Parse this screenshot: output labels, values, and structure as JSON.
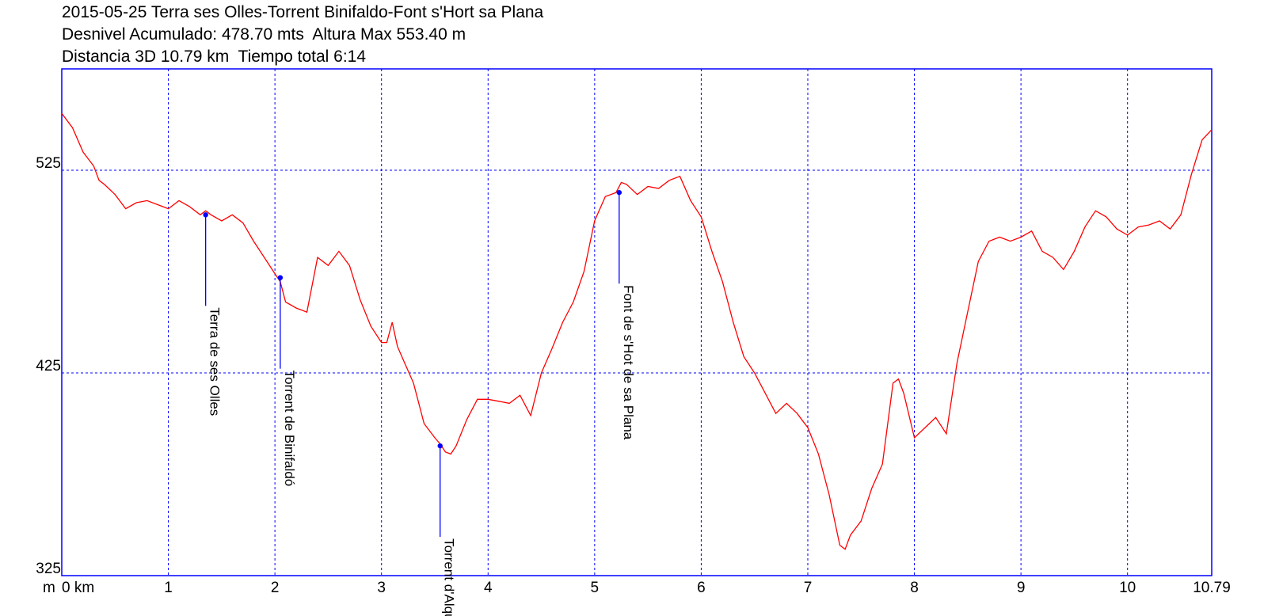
{
  "title": {
    "line1": "2015-05-25 Terra ses Olles-Torrent Binifaldo-Font s'Hort sa Plana",
    "line2": "Desnivel Acumulado: 478.70 mts  Altura Max 553.40 m",
    "line3": "Distancia 3D 10.79 km  Tiempo total 6:14"
  },
  "chart_data": {
    "type": "line",
    "xlabel": "km",
    "ylabel": "m",
    "xlim": [
      0,
      10.79
    ],
    "ylim": [
      325,
      575
    ],
    "x_ticks": [
      "0",
      "1",
      "2",
      "3",
      "4",
      "5",
      "6",
      "7",
      "8",
      "9",
      "10",
      "10.79"
    ],
    "x_tick_values": [
      0,
      1,
      2,
      3,
      4,
      5,
      6,
      7,
      8,
      9,
      10,
      10.79
    ],
    "y_ticks": [
      525,
      425,
      325
    ],
    "grid": true,
    "colors": {
      "line": "#ff0000",
      "grid": "#0000ff",
      "frame": "#0000ff",
      "marker": "#0000ff"
    },
    "series": [
      {
        "x": [
          0.0,
          0.1,
          0.2,
          0.3,
          0.35,
          0.4,
          0.5,
          0.6,
          0.7,
          0.8,
          0.9,
          1.0,
          1.1,
          1.2,
          1.3,
          1.35,
          1.4,
          1.5,
          1.6,
          1.7,
          1.8,
          1.9,
          2.0,
          2.05,
          2.1,
          2.2,
          2.3,
          2.4,
          2.5,
          2.6,
          2.7,
          2.8,
          2.9,
          3.0,
          3.05,
          3.1,
          3.15,
          3.2,
          3.3,
          3.4,
          3.5,
          3.55,
          3.6,
          3.65,
          3.7,
          3.8,
          3.9,
          4.0,
          4.1,
          4.2,
          4.3,
          4.4,
          4.5,
          4.6,
          4.7,
          4.8,
          4.9,
          5.0,
          5.1,
          5.2,
          5.25,
          5.3,
          5.4,
          5.5,
          5.6,
          5.7,
          5.8,
          5.9,
          6.0,
          6.1,
          6.2,
          6.3,
          6.4,
          6.5,
          6.6,
          6.7,
          6.8,
          6.9,
          7.0,
          7.1,
          7.2,
          7.3,
          7.35,
          7.4,
          7.5,
          7.6,
          7.7,
          7.8,
          7.85,
          7.9,
          8.0,
          8.1,
          8.2,
          8.3,
          8.4,
          8.5,
          8.6,
          8.7,
          8.8,
          8.9,
          9.0,
          9.1,
          9.2,
          9.3,
          9.4,
          9.5,
          9.6,
          9.7,
          9.8,
          9.9,
          10.0,
          10.1,
          10.2,
          10.3,
          10.4,
          10.5,
          10.6,
          10.7,
          10.79
        ],
        "values": [
          553,
          546,
          534,
          527,
          520,
          518,
          513,
          506,
          509,
          510,
          508,
          506,
          510,
          507,
          503,
          505,
          503,
          500,
          503,
          499,
          490,
          482,
          474,
          470,
          460,
          457,
          455,
          482,
          478,
          485,
          478,
          461,
          448,
          440,
          440,
          450,
          438,
          432,
          420,
          400,
          393,
          390,
          386,
          385,
          389,
          402,
          412,
          412,
          411,
          410,
          414,
          404,
          425,
          437,
          450,
          460,
          475,
          500,
          512,
          514,
          519,
          518,
          513,
          517,
          516,
          520,
          522,
          510,
          502,
          485,
          470,
          450,
          433,
          425,
          415,
          405,
          410,
          405,
          398,
          385,
          365,
          340,
          338,
          345,
          352,
          368,
          380,
          420,
          422,
          415,
          393,
          398,
          403,
          395,
          430,
          455,
          480,
          490,
          492,
          490,
          492,
          495,
          485,
          482,
          476,
          485,
          497,
          505,
          502,
          496,
          493,
          497,
          498,
          500,
          496,
          503,
          523,
          540,
          545
        ]
      }
    ],
    "waypoints": [
      {
        "name": "Terra de ses Olles",
        "x": 1.35,
        "y": 503
      },
      {
        "name": "Torrent de Binifaldó",
        "x": 2.05,
        "y": 472
      },
      {
        "name": "Torrent d'Alqueda",
        "x": 3.55,
        "y": 389
      },
      {
        "name": "Font de s'Hot de sa Plana",
        "x": 5.23,
        "y": 514
      }
    ]
  }
}
